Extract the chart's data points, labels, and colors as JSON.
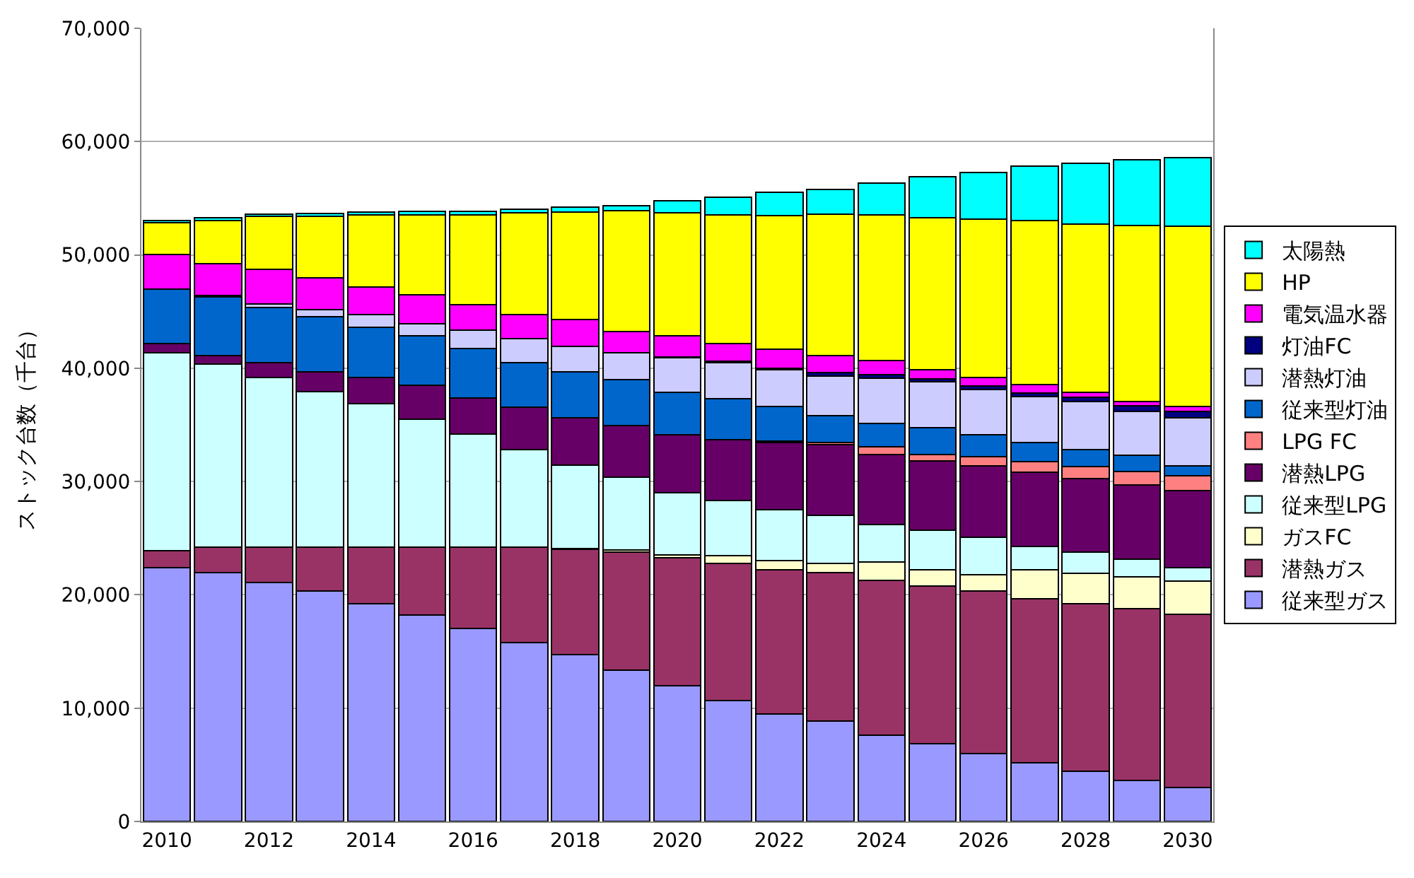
{
  "chart_data": {
    "type": "bar",
    "stacked": true,
    "ylabel": "ストック台数（千台）",
    "x": [
      2010,
      2011,
      2012,
      2013,
      2014,
      2015,
      2016,
      2017,
      2018,
      2019,
      2020,
      2021,
      2022,
      2023,
      2024,
      2025,
      2026,
      2027,
      2028,
      2029,
      2030
    ],
    "xlim": [
      2009.5,
      2030.5
    ],
    "xticks": [
      2010,
      2012,
      2014,
      2016,
      2018,
      2020,
      2022,
      2024,
      2026,
      2028,
      2030
    ],
    "ylim": [
      0,
      70000
    ],
    "yticks": [
      {
        "value": 0,
        "label": "0"
      },
      {
        "value": 10000,
        "label": "10,000"
      },
      {
        "value": 20000,
        "label": "20,000"
      },
      {
        "value": 30000,
        "label": "30,000"
      },
      {
        "value": 40000,
        "label": "40,000"
      },
      {
        "value": 50000,
        "label": "50,000"
      },
      {
        "value": 60000,
        "label": "60,000"
      },
      {
        "value": 70000,
        "label": "70,000"
      }
    ],
    "grid": "y",
    "legend": "right",
    "series": [
      {
        "name": "従来型ガス",
        "color": "#9999ff",
        "values": [
          22400,
          21950,
          21100,
          20350,
          19200,
          18200,
          17050,
          15800,
          14700,
          13350,
          12000,
          10700,
          9500,
          8850,
          7600,
          6850,
          6000,
          5150,
          4400,
          3650,
          3000
        ]
      },
      {
        "name": "潜熱ガス",
        "color": "#993366",
        "values": [
          1500,
          2250,
          3100,
          3850,
          5000,
          6000,
          7150,
          8400,
          9300,
          10450,
          11250,
          12100,
          12700,
          13100,
          13700,
          13950,
          14350,
          14500,
          14800,
          15150,
          15250
        ]
      },
      {
        "name": "ガスFC",
        "color": "#ffffcc",
        "values": [
          null,
          null,
          null,
          null,
          null,
          null,
          null,
          null,
          100,
          150,
          250,
          650,
          800,
          850,
          1600,
          1400,
          1400,
          2550,
          2700,
          2800,
          2950
        ]
      },
      {
        "name": "従来型LPG",
        "color": "#ccffff",
        "values": [
          17450,
          16150,
          15000,
          13750,
          12700,
          11300,
          10000,
          8600,
          7350,
          6450,
          5500,
          4900,
          4500,
          4200,
          3300,
          3500,
          3350,
          2100,
          1850,
          1550,
          1200
        ]
      },
      {
        "name": "潜熱LPG",
        "color": "#660066",
        "values": [
          850,
          750,
          1300,
          1700,
          2300,
          3000,
          3200,
          3750,
          4150,
          4550,
          5100,
          5350,
          5950,
          6250,
          6200,
          6150,
          6300,
          6500,
          6500,
          6550,
          6800
        ]
      },
      {
        "name": "LPG FC",
        "color": "#ff8080",
        "values": [
          null,
          null,
          null,
          null,
          null,
          null,
          null,
          null,
          null,
          null,
          null,
          null,
          100,
          200,
          650,
          550,
          800,
          950,
          1100,
          1200,
          1300
        ]
      },
      {
        "name": "従来型灯油",
        "color": "#0066cc",
        "values": [
          4800,
          5200,
          4850,
          4900,
          4400,
          4350,
          4350,
          3950,
          4050,
          4050,
          3800,
          3600,
          3100,
          2350,
          2100,
          2350,
          1900,
          1700,
          1450,
          1400,
          900
        ]
      },
      {
        "name": "潜熱灯油",
        "color": "#ccccff",
        "values": [
          null,
          100,
          300,
          600,
          1150,
          1050,
          1600,
          2100,
          2300,
          2350,
          3000,
          3200,
          3200,
          3500,
          3950,
          4050,
          4050,
          4050,
          4250,
          3900,
          4200
        ]
      },
      {
        "name": "灯油FC",
        "color": "#000080",
        "values": [
          null,
          null,
          null,
          null,
          null,
          null,
          null,
          null,
          null,
          null,
          100,
          100,
          150,
          300,
          300,
          250,
          300,
          300,
          400,
          500,
          600
        ]
      },
      {
        "name": "電気温水器",
        "color": "#ff00ff",
        "values": [
          3050,
          2800,
          3050,
          2850,
          2400,
          2550,
          2250,
          2150,
          2350,
          1900,
          1850,
          1600,
          1700,
          1500,
          1300,
          800,
          750,
          750,
          450,
          350,
          450
        ]
      },
      {
        "name": "HP",
        "color": "#ffff00",
        "values": [
          2800,
          3850,
          4700,
          5400,
          6400,
          7100,
          7950,
          8950,
          9500,
          10650,
          10850,
          11350,
          11750,
          12500,
          12850,
          13450,
          13950,
          14450,
          14850,
          15550,
          15900
        ]
      },
      {
        "name": "太陽熱",
        "color": "#00ffff",
        "values": [
          200,
          200,
          200,
          250,
          250,
          300,
          300,
          350,
          400,
          450,
          1050,
          1550,
          2050,
          2200,
          2800,
          3600,
          4100,
          4850,
          5350,
          5800,
          6050
        ]
      }
    ]
  }
}
